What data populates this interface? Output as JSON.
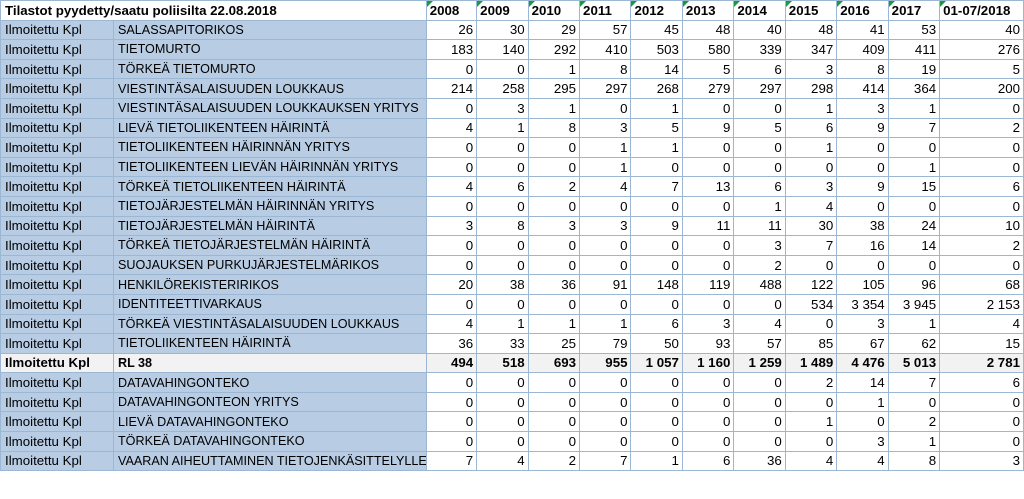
{
  "header": {
    "title": "Tilastot pyydetty/saatu poliisilta 22.08.2018",
    "years": [
      "2008",
      "2009",
      "2010",
      "2011",
      "2012",
      "2013",
      "2014",
      "2015",
      "2016",
      "2017",
      "01-07/2018"
    ]
  },
  "rows": [
    {
      "a": "Ilmoitettu Kpl",
      "b": "SALASSAPITORIKOS",
      "v": [
        "26",
        "30",
        "29",
        "57",
        "45",
        "48",
        "40",
        "48",
        "41",
        "53",
        "40"
      ]
    },
    {
      "a": "Ilmoitettu Kpl",
      "b": "TIETOMURTO",
      "v": [
        "183",
        "140",
        "292",
        "410",
        "503",
        "580",
        "339",
        "347",
        "409",
        "411",
        "276"
      ]
    },
    {
      "a": "Ilmoitettu Kpl",
      "b": "TÖRKEÄ TIETOMURTO",
      "v": [
        "0",
        "0",
        "1",
        "8",
        "14",
        "5",
        "6",
        "3",
        "8",
        "19",
        "5"
      ]
    },
    {
      "a": "Ilmoitettu Kpl",
      "b": "VIESTINTÄSALAISUUDEN LOUKKAUS",
      "v": [
        "214",
        "258",
        "295",
        "297",
        "268",
        "279",
        "297",
        "298",
        "414",
        "364",
        "200"
      ]
    },
    {
      "a": "Ilmoitettu Kpl",
      "b": "VIESTINTÄSALAISUUDEN LOUKKAUKSEN YRITYS",
      "v": [
        "0",
        "3",
        "1",
        "0",
        "1",
        "0",
        "0",
        "1",
        "3",
        "1",
        "0"
      ]
    },
    {
      "a": "Ilmoitettu Kpl",
      "b": "LIEVÄ TIETOLIIKENTEEN HÄIRINTÄ",
      "v": [
        "4",
        "1",
        "8",
        "3",
        "5",
        "9",
        "5",
        "6",
        "9",
        "7",
        "2"
      ]
    },
    {
      "a": "Ilmoitettu Kpl",
      "b": "TIETOLIIKENTEEN HÄIRINNÄN YRITYS",
      "v": [
        "0",
        "0",
        "0",
        "1",
        "1",
        "0",
        "0",
        "1",
        "0",
        "0",
        "0"
      ]
    },
    {
      "a": "Ilmoitettu Kpl",
      "b": "TIETOLIIKENTEEN LIEVÄN HÄIRINNÄN YRITYS",
      "v": [
        "0",
        "0",
        "0",
        "1",
        "0",
        "0",
        "0",
        "0",
        "0",
        "1",
        "0"
      ]
    },
    {
      "a": "Ilmoitettu Kpl",
      "b": "TÖRKEÄ TIETOLIIKENTEEN HÄIRINTÄ",
      "v": [
        "4",
        "6",
        "2",
        "4",
        "7",
        "13",
        "6",
        "3",
        "9",
        "15",
        "6"
      ]
    },
    {
      "a": "Ilmoitettu Kpl",
      "b": "TIETOJÄRJESTELMÄN HÄIRINNÄN YRITYS",
      "v": [
        "0",
        "0",
        "0",
        "0",
        "0",
        "0",
        "1",
        "4",
        "0",
        "0",
        "0"
      ]
    },
    {
      "a": "Ilmoitettu Kpl",
      "b": "TIETOJÄRJESTELMÄN HÄIRINTÄ",
      "v": [
        "3",
        "8",
        "3",
        "3",
        "9",
        "11",
        "11",
        "30",
        "38",
        "24",
        "10"
      ]
    },
    {
      "a": "Ilmoitettu Kpl",
      "b": "TÖRKEÄ TIETOJÄRJESTELMÄN HÄIRINTÄ",
      "v": [
        "0",
        "0",
        "0",
        "0",
        "0",
        "0",
        "3",
        "7",
        "16",
        "14",
        "2"
      ]
    },
    {
      "a": "Ilmoitettu Kpl",
      "b": "SUOJAUKSEN PURKUJÄRJESTELMÄRIKOS",
      "v": [
        "0",
        "0",
        "0",
        "0",
        "0",
        "0",
        "2",
        "0",
        "0",
        "0",
        "0"
      ]
    },
    {
      "a": "Ilmoitettu Kpl",
      "b": "HENKILÖREKISTERIRIKOS",
      "v": [
        "20",
        "38",
        "36",
        "91",
        "148",
        "119",
        "488",
        "122",
        "105",
        "96",
        "68"
      ]
    },
    {
      "a": "Ilmoitettu Kpl",
      "b": "IDENTITEETTIVARKAUS",
      "v": [
        "0",
        "0",
        "0",
        "0",
        "0",
        "0",
        "0",
        "534",
        "3 354",
        "3 945",
        "2 153"
      ]
    },
    {
      "a": "Ilmoitettu Kpl",
      "b": "TÖRKEÄ VIESTINTÄSALAISUUDEN LOUKKAUS",
      "v": [
        "4",
        "1",
        "1",
        "1",
        "6",
        "3",
        "4",
        "0",
        "3",
        "1",
        "4"
      ]
    },
    {
      "a": "Ilmoitettu Kpl",
      "b": "TIETOLIIKENTEEN HÄIRINTÄ",
      "v": [
        "36",
        "33",
        "25",
        "79",
        "50",
        "93",
        "57",
        "85",
        "67",
        "62",
        "15"
      ]
    },
    {
      "a": "Ilmoitettu Kpl",
      "b": "RL 38",
      "v": [
        "494",
        "518",
        "693",
        "955",
        "1 057",
        "1 160",
        "1 259",
        "1 489",
        "4 476",
        "5 013",
        "2 781"
      ],
      "total": true
    },
    {
      "a": "Ilmoitettu Kpl",
      "b": "DATAVAHINGONTEKO",
      "v": [
        "0",
        "0",
        "0",
        "0",
        "0",
        "0",
        "0",
        "2",
        "14",
        "7",
        "6"
      ]
    },
    {
      "a": "Ilmoitettu Kpl",
      "b": "DATAVAHINGONTEON YRITYS",
      "v": [
        "0",
        "0",
        "0",
        "0",
        "0",
        "0",
        "0",
        "0",
        "1",
        "0",
        "0"
      ]
    },
    {
      "a": "Ilmoitettu Kpl",
      "b": "LIEVÄ DATAVAHINGONTEKO",
      "v": [
        "0",
        "0",
        "0",
        "0",
        "0",
        "0",
        "0",
        "1",
        "0",
        "2",
        "0"
      ]
    },
    {
      "a": "Ilmoitettu Kpl",
      "b": "TÖRKEÄ DATAVAHINGONTEKO",
      "v": [
        "0",
        "0",
        "0",
        "0",
        "0",
        "0",
        "0",
        "0",
        "3",
        "1",
        "0"
      ]
    },
    {
      "a": "Ilmoitettu Kpl",
      "b": "VAARAN AIHEUTTAMINEN TIETOJENKÄSITTELYLLE",
      "v": [
        "7",
        "4",
        "2",
        "7",
        "1",
        "6",
        "36",
        "4",
        "4",
        "8",
        "3"
      ]
    }
  ],
  "colors": {
    "label_fill": "#b8cce4",
    "grid": "#9bb7d4",
    "total_fill": "#f2f2f2",
    "corner_mark": "#1a9a3e"
  }
}
